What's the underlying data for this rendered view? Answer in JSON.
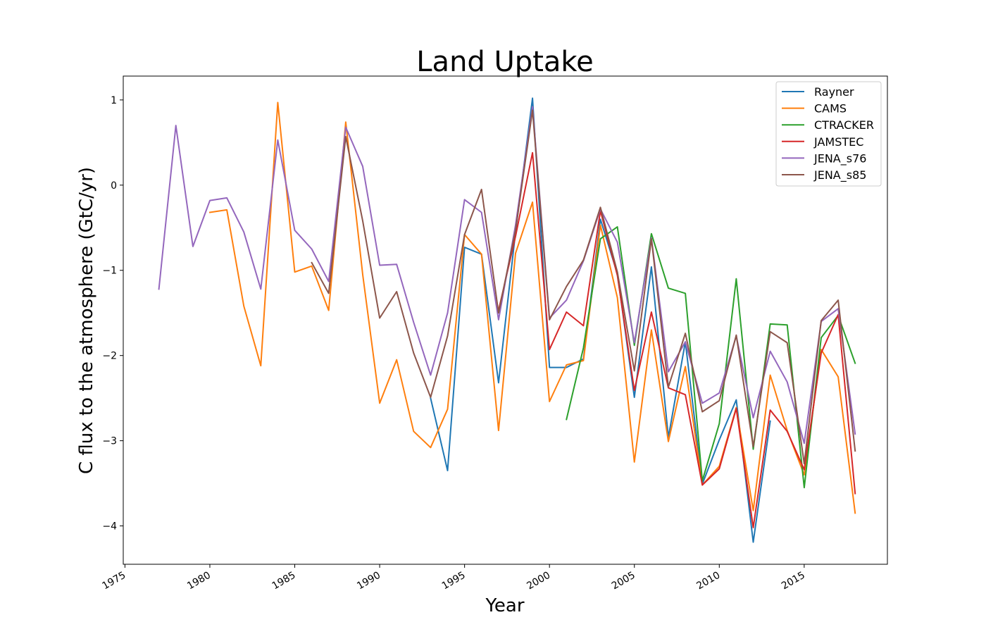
{
  "chart_data": {
    "type": "line",
    "title": "Land Uptake",
    "xlabel": "Year",
    "ylabel": "C flux to the atmosphere (GtC/yr)",
    "xlim": [
      1974.9,
      2019.9
    ],
    "ylim": [
      -4.45,
      1.28
    ],
    "xticks": [
      1975,
      1980,
      1985,
      1990,
      1995,
      2000,
      2005,
      2010,
      2015
    ],
    "xtick_labels": [
      "1975",
      "1980",
      "1985",
      "1990",
      "1995",
      "2000",
      "2005",
      "2010",
      "2015"
    ],
    "yticks": [
      1,
      0,
      -1,
      -2,
      -3,
      -4
    ],
    "ytick_labels": [
      "1",
      "0",
      "−1",
      "−2",
      "−3",
      "−4"
    ],
    "grid": false,
    "legend_position": "top-right",
    "series": [
      {
        "name": "Rayner",
        "color": "#1f77b4",
        "x": [
          1993,
          1994,
          1995,
          1996,
          1997,
          1998,
          1999,
          2000,
          2001,
          2002,
          2003,
          2004,
          2005,
          2006,
          2007,
          2008,
          2009,
          2010,
          2011,
          2012,
          2013
        ],
        "y": [
          -2.5,
          -3.35,
          -0.73,
          -0.81,
          -2.32,
          -0.55,
          1.02,
          -2.14,
          -2.14,
          -2.04,
          -0.4,
          -1.04,
          -2.49,
          -0.96,
          -2.96,
          -1.84,
          -3.51,
          -2.99,
          -2.52,
          -4.19,
          -2.77
        ]
      },
      {
        "name": "CAMS",
        "color": "#ff7f0e",
        "x": [
          1980,
          1981,
          1982,
          1983,
          1984,
          1985,
          1986,
          1987,
          1988,
          1989,
          1990,
          1991,
          1992,
          1993,
          1994,
          1995,
          1996,
          1997,
          1998,
          1999,
          2000,
          2001,
          2002,
          2003,
          2004,
          2005,
          2006,
          2007,
          2008,
          2009,
          2010,
          2011,
          2012,
          2013,
          2014,
          2015,
          2016,
          2017,
          2018
        ],
        "y": [
          -0.32,
          -0.29,
          -1.42,
          -2.12,
          0.97,
          -1.02,
          -0.95,
          -1.47,
          0.74,
          -1.05,
          -2.56,
          -2.05,
          -2.89,
          -3.08,
          -2.63,
          -0.58,
          -0.81,
          -2.88,
          -0.8,
          -0.2,
          -2.54,
          -2.11,
          -2.06,
          -0.47,
          -1.32,
          -3.25,
          -1.7,
          -3.01,
          -2.13,
          -3.52,
          -3.3,
          -2.61,
          -3.82,
          -2.23,
          -2.88,
          -3.4,
          -1.93,
          -2.25,
          -3.85
        ]
      },
      {
        "name": "CTRACKER",
        "color": "#2ca02c",
        "x": [
          2001,
          2002,
          2003,
          2004,
          2005,
          2006,
          2007,
          2008,
          2009,
          2010,
          2011,
          2012,
          2013,
          2014,
          2015,
          2016,
          2017,
          2018
        ],
        "y": [
          -2.75,
          -1.91,
          -0.63,
          -0.49,
          -1.88,
          -0.57,
          -1.21,
          -1.27,
          -3.47,
          -2.8,
          -1.1,
          -3.1,
          -1.63,
          -1.64,
          -3.55,
          -1.79,
          -1.53,
          -2.09
        ]
      },
      {
        "name": "JAMSTEC",
        "color": "#d62728",
        "x": [
          1997,
          1998,
          1999,
          2000,
          2001,
          2002,
          2003,
          2004,
          2005,
          2006,
          2007,
          2008,
          2009,
          2010,
          2011,
          2012,
          2013,
          2014,
          2015,
          2016,
          2017,
          2018
        ],
        "y": [
          -1.47,
          -0.6,
          0.38,
          -1.93,
          -1.49,
          -1.65,
          -0.3,
          -1.06,
          -2.41,
          -1.49,
          -2.38,
          -2.46,
          -3.52,
          -3.33,
          -2.62,
          -4.02,
          -2.64,
          -2.89,
          -3.34,
          -1.97,
          -1.52,
          -3.62
        ]
      },
      {
        "name": "JENA_s76",
        "color": "#9467bd",
        "x": [
          1977,
          1978,
          1979,
          1980,
          1981,
          1982,
          1983,
          1984,
          1985,
          1986,
          1987,
          1988,
          1989,
          1990,
          1991,
          1992,
          1993,
          1994,
          1995,
          1996,
          1997,
          1998,
          1999,
          2000,
          2001,
          2002,
          2003,
          2004,
          2005,
          2006,
          2007,
          2008,
          2009,
          2010,
          2011,
          2012,
          2013,
          2014,
          2015,
          2016,
          2017,
          2018
        ],
        "y": [
          -1.22,
          0.7,
          -0.72,
          -0.18,
          -0.15,
          -0.55,
          -1.22,
          0.53,
          -0.53,
          -0.75,
          -1.13,
          0.68,
          0.22,
          -0.94,
          -0.93,
          -1.61,
          -2.23,
          -1.5,
          -0.17,
          -0.32,
          -1.58,
          -0.47,
          0.92,
          -1.56,
          -1.35,
          -0.89,
          -0.28,
          -0.67,
          -1.85,
          -0.62,
          -2.19,
          -1.84,
          -2.56,
          -2.44,
          -1.77,
          -2.73,
          -1.95,
          -2.31,
          -3.03,
          -1.6,
          -1.45,
          -2.92
        ]
      },
      {
        "name": "JENA_s85",
        "color": "#8c564b",
        "x": [
          1986,
          1987,
          1988,
          1989,
          1990,
          1991,
          1992,
          1993,
          1994,
          1995,
          1996,
          1997,
          1998,
          1999,
          2000,
          2001,
          2002,
          2003,
          2004,
          2005,
          2006,
          2007,
          2008,
          2009,
          2010,
          2011,
          2012,
          2013,
          2014,
          2015,
          2016,
          2017,
          2018
        ],
        "y": [
          -0.91,
          -1.27,
          0.57,
          -0.42,
          -1.56,
          -1.25,
          -1.97,
          -2.49,
          -1.77,
          -0.58,
          -0.05,
          -1.5,
          -0.53,
          0.88,
          -1.58,
          -1.19,
          -0.88,
          -0.26,
          -1.02,
          -2.18,
          -0.63,
          -2.37,
          -1.74,
          -2.66,
          -2.53,
          -1.76,
          -3.07,
          -1.72,
          -1.85,
          -3.27,
          -1.59,
          -1.35,
          -3.12
        ]
      }
    ]
  }
}
